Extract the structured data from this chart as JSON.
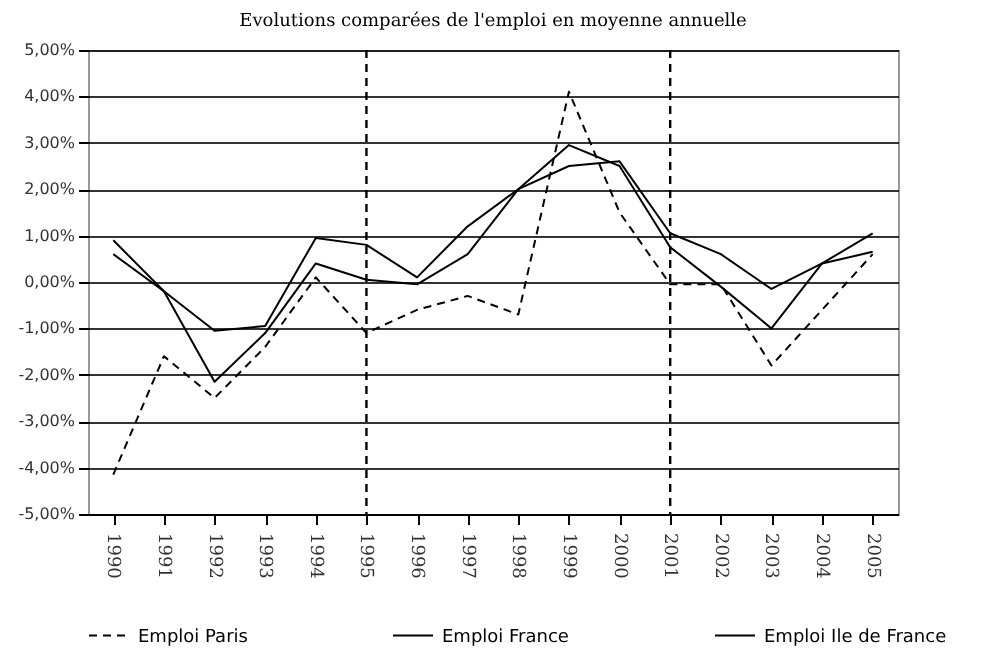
{
  "chart_data": {
    "type": "line",
    "title": "Evolutions comparées de l'emploi en moyenne annuelle",
    "categories": [
      "1990",
      "1991",
      "1992",
      "1993",
      "1994",
      "1995",
      "1996",
      "1997",
      "1998",
      "1999",
      "2000",
      "2001",
      "2002",
      "2003",
      "2004",
      "2005"
    ],
    "series": [
      {
        "name": "Emploi Paris",
        "color": "#000000",
        "line_style": "dashed",
        "values": [
          -4.15,
          -1.6,
          -2.5,
          -1.4,
          0.1,
          -1.1,
          -0.6,
          -0.3,
          -0.7,
          4.1,
          1.5,
          -0.05,
          -0.05,
          -1.8,
          -0.6,
          0.6
        ]
      },
      {
        "name": "Emploi France",
        "color": "#000000",
        "line_style": "solid",
        "values": [
          0.9,
          -0.2,
          -2.15,
          -1.1,
          0.4,
          0.05,
          -0.05,
          0.6,
          2.0,
          2.95,
          2.5,
          0.75,
          -0.1,
          -1.0,
          0.4,
          1.05
        ]
      },
      {
        "name": "Emploi Ile de France",
        "color": "#000000",
        "line_style": "solid",
        "values": [
          0.6,
          -0.2,
          -1.05,
          -0.95,
          0.95,
          0.8,
          0.1,
          1.2,
          2.0,
          2.5,
          2.6,
          1.05,
          0.6,
          -0.15,
          0.4,
          0.65
        ]
      }
    ],
    "ylim": [
      -5,
      5
    ],
    "yticks": [
      {
        "value": -5,
        "label": "-5,00%"
      },
      {
        "value": -4,
        "label": "-4,00%"
      },
      {
        "value": -3,
        "label": "-3,00%"
      },
      {
        "value": -2,
        "label": "-2,00%"
      },
      {
        "value": -1,
        "label": "-1,00%"
      },
      {
        "value": 0,
        "label": "0,00%"
      },
      {
        "value": 1,
        "label": "1,00%"
      },
      {
        "value": 2,
        "label": "2,00%"
      },
      {
        "value": 3,
        "label": "3,00%"
      },
      {
        "value": 4,
        "label": "4,00%"
      },
      {
        "value": 5,
        "label": "5,00%"
      }
    ],
    "ref_lines": [
      {
        "axis": "x",
        "value": "1995",
        "color": "#000000",
        "line_style": "dashed"
      },
      {
        "axis": "x",
        "value": "2001",
        "color": "#000000",
        "line_style": "dashed"
      }
    ],
    "grid": "y",
    "legend": "bottom",
    "marker": "none"
  }
}
